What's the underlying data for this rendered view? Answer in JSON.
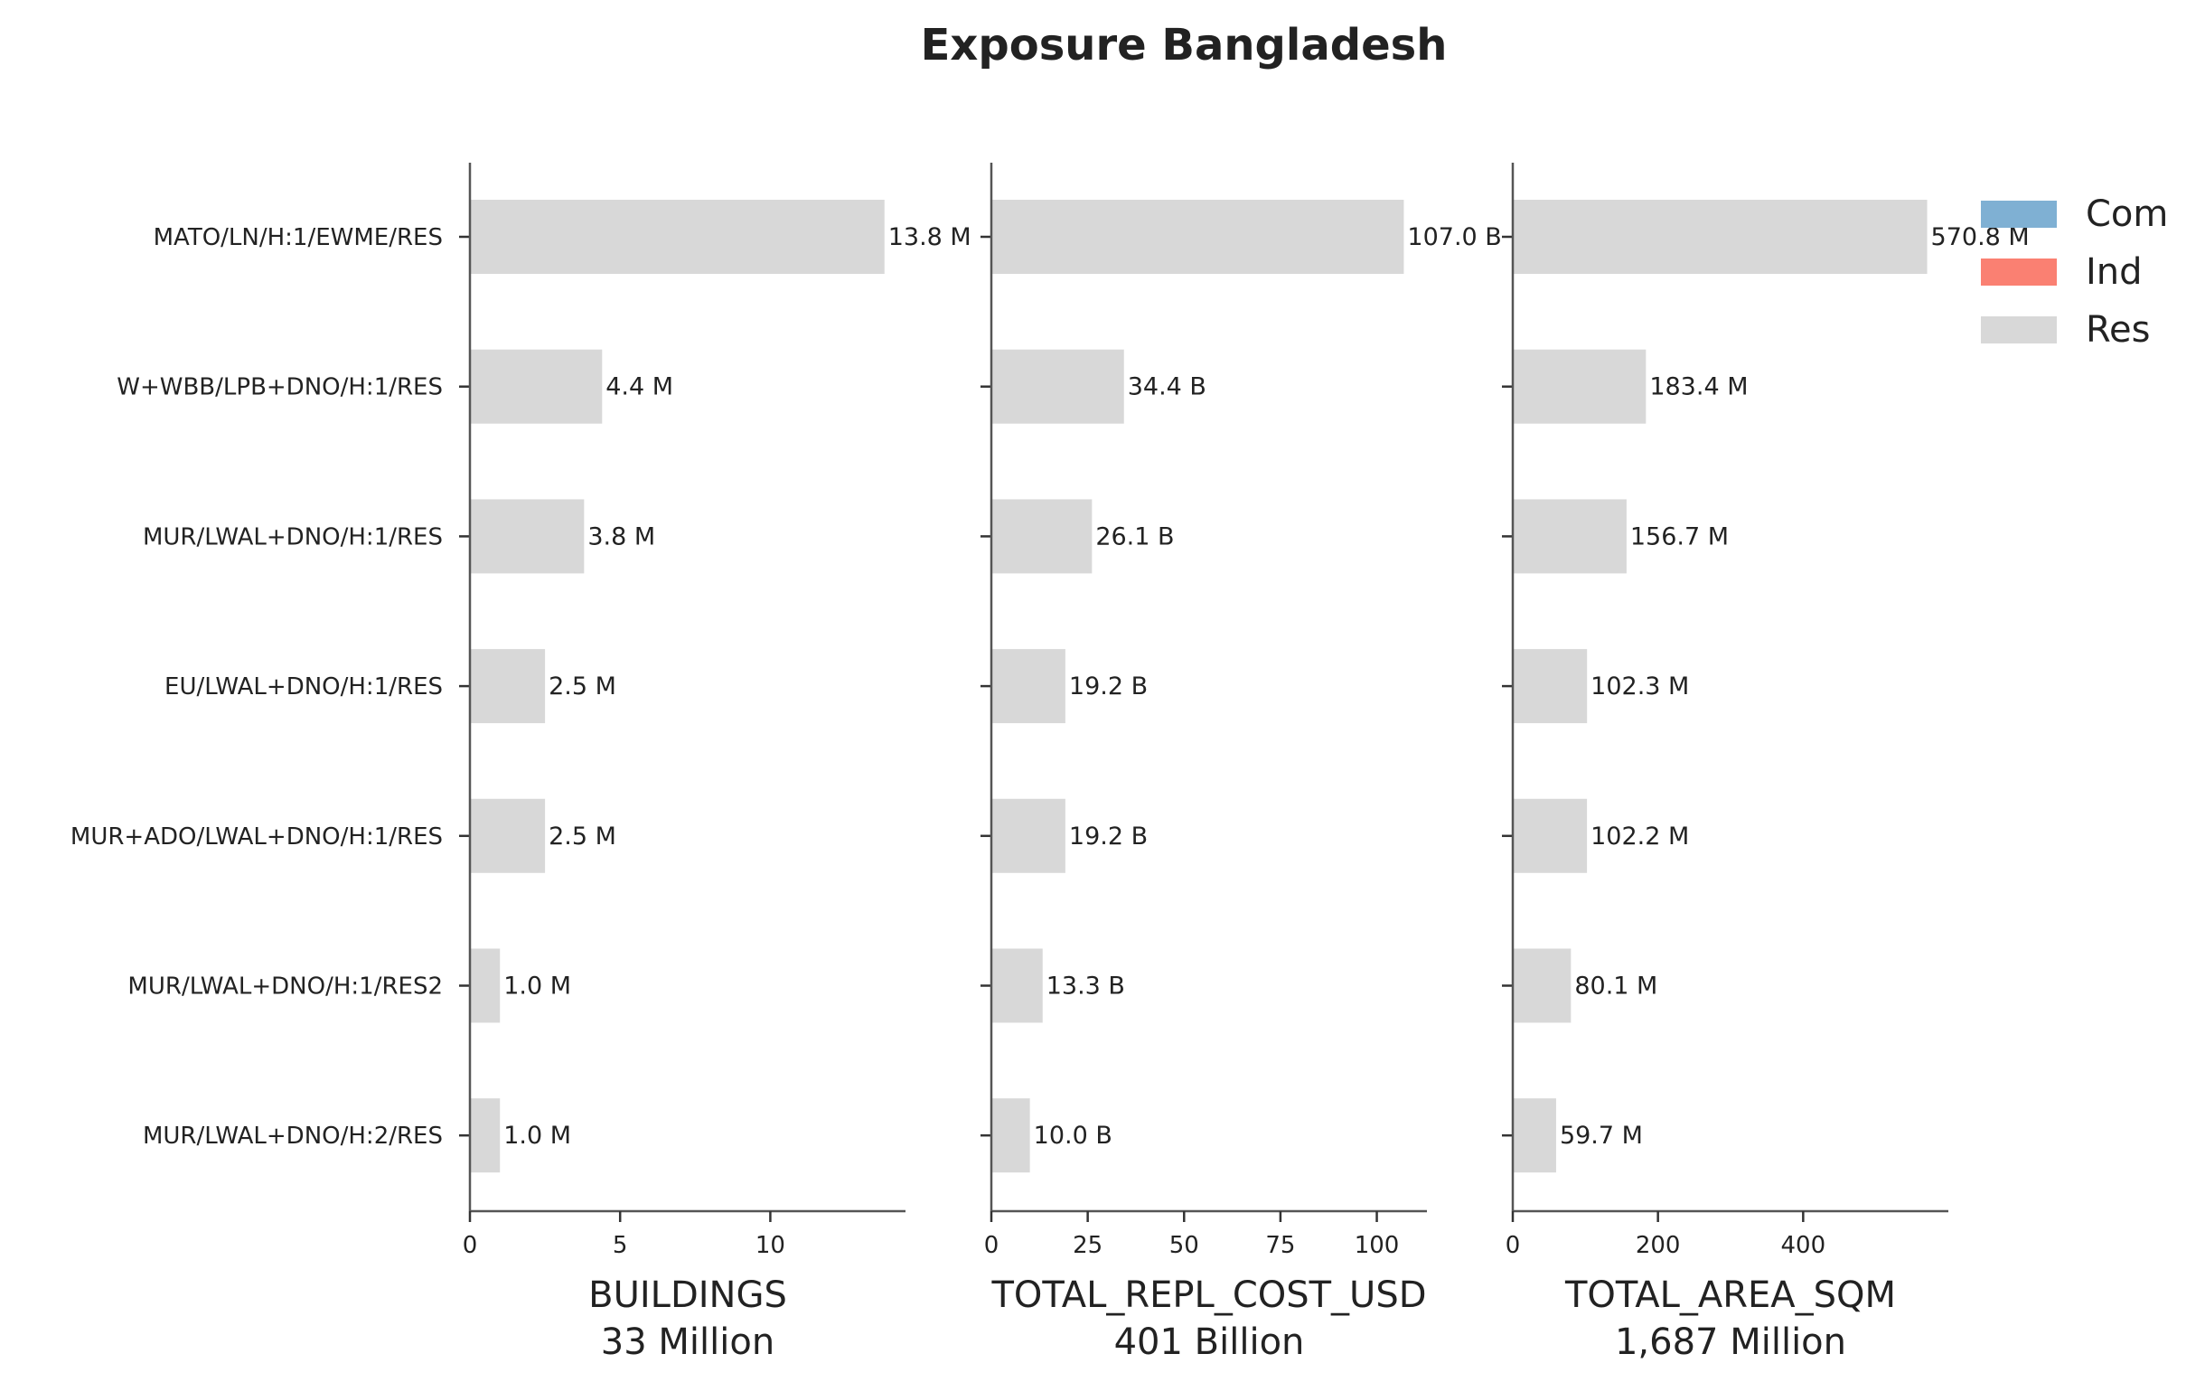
{
  "chart_data": {
    "type": "bar",
    "orientation": "horizontal",
    "title": "Exposure Bangladesh",
    "categories": [
      "MATO/LN/H:1/EWME/RES",
      "W+WBB/LPB+DNO/H:1/RES",
      "MUR/LWAL+DNO/H:1/RES",
      "EU/LWAL+DNO/H:1/RES",
      "MUR+ADO/LWAL+DNO/H:1/RES",
      "MUR/LWAL+DNO/H:1/RES2",
      "MUR/LWAL+DNO/H:2/RES"
    ],
    "legend": {
      "placement": "top-right",
      "entries": [
        {
          "name": "Com",
          "color": "#7fb0d3"
        },
        {
          "name": "Ind",
          "color": "#fa8072"
        },
        {
          "name": "Res",
          "color": "#d8d8d8"
        }
      ]
    },
    "panels": [
      {
        "xlabel": "BUILDINGS",
        "total": "33 Million",
        "xlim": [
          0,
          14.5
        ],
        "xticks": [
          0,
          5,
          10
        ],
        "series": [
          {
            "name": "Res",
            "color": "#d8d8d8",
            "values": [
              13.8,
              4.4,
              3.8,
              2.5,
              2.5,
              1.0,
              1.0
            ]
          }
        ],
        "value_labels": [
          "13.8 M",
          "4.4 M",
          "3.8 M",
          "2.5 M",
          "2.5 M",
          "1.0 M",
          "1.0 M"
        ]
      },
      {
        "xlabel": "TOTAL_REPL_COST_USD",
        "total": "401 Billion",
        "xlim": [
          0,
          113
        ],
        "xticks": [
          0,
          25,
          50,
          75,
          100
        ],
        "series": [
          {
            "name": "Res",
            "color": "#d8d8d8",
            "values": [
              107.0,
              34.4,
              26.1,
              19.2,
              19.2,
              13.3,
              10.0
            ]
          }
        ],
        "value_labels": [
          "107.0 B",
          "34.4 B",
          "26.1 B",
          "19.2 B",
          "19.2 B",
          "13.3 B",
          "10.0 B"
        ]
      },
      {
        "xlabel": "TOTAL_AREA_SQM",
        "total": "1,687 Million",
        "xlim": [
          0,
          600
        ],
        "xticks": [
          0,
          200,
          400
        ],
        "series": [
          {
            "name": "Res",
            "color": "#d8d8d8",
            "values": [
              570.8,
              183.4,
              156.7,
              102.3,
              102.2,
              80.1,
              59.7
            ]
          }
        ],
        "value_labels": [
          "570.8 M",
          "183.4 M",
          "156.7 M",
          "102.3 M",
          "102.2 M",
          "80.1 M",
          "59.7 M"
        ]
      }
    ],
    "grid": false
  }
}
